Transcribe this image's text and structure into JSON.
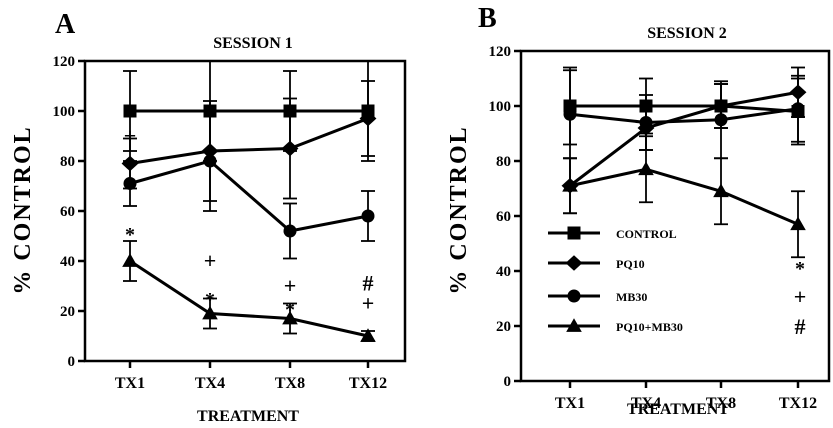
{
  "chart_data": [
    {
      "panel_letter": "A",
      "type": "line",
      "title": "SESSION 1",
      "xlabel": "TREATMENT",
      "ylabel": "% CONTROL",
      "categories": [
        "TX1",
        "TX4",
        "TX8",
        "TX12"
      ],
      "ylim": [
        0,
        120
      ],
      "yticks": [
        "0",
        "20",
        "40",
        "60",
        "80",
        "100",
        "120"
      ],
      "grid": false,
      "series": [
        {
          "key": "control",
          "marker": "square",
          "values": [
            100,
            100,
            100,
            100
          ],
          "err": [
            16,
            20,
            16,
            20
          ]
        },
        {
          "key": "pq10",
          "marker": "diamond",
          "values": [
            79,
            84,
            85,
            97
          ],
          "err": [
            10,
            20,
            20,
            15
          ]
        },
        {
          "key": "mb30",
          "marker": "circle",
          "values": [
            71,
            80,
            52,
            58
          ],
          "err": [
            9,
            20,
            11,
            10
          ]
        },
        {
          "key": "pq10mb30",
          "marker": "triangle",
          "values": [
            40,
            19,
            17,
            10
          ],
          "err": [
            8,
            6,
            6,
            2
          ]
        }
      ],
      "annotations": [
        {
          "text": "*",
          "category": "TX1",
          "y": 52
        },
        {
          "text": "+",
          "category": "TX1",
          "y": 90
        },
        {
          "text": "+",
          "category": "TX4",
          "y": 40
        },
        {
          "text": "*",
          "category": "TX4",
          "y": 26
        },
        {
          "text": "+",
          "category": "TX8",
          "y": 30
        },
        {
          "text": "*",
          "category": "TX8",
          "y": 22
        },
        {
          "text": "#",
          "category": "TX12",
          "y": 31
        },
        {
          "text": "+",
          "category": "TX12",
          "y": 23
        }
      ]
    },
    {
      "panel_letter": "B",
      "type": "line",
      "title": "SESSION 2",
      "xlabel": "TREATMENT",
      "ylabel": "% CONTROL",
      "categories": [
        "TX1",
        "TX4",
        "TX8",
        "TX12"
      ],
      "ylim": [
        0,
        120
      ],
      "yticks": [
        "0",
        "20",
        "40",
        "60",
        "80",
        "100",
        "120"
      ],
      "grid": false,
      "series": [
        {
          "key": "control",
          "marker": "square",
          "values": [
            100,
            100,
            100,
            98
          ],
          "err": [
            14,
            10,
            8,
            12
          ]
        },
        {
          "key": "pq10",
          "marker": "diamond",
          "values": [
            71,
            92,
            100,
            105
          ],
          "err": [
            10,
            8,
            8,
            9
          ]
        },
        {
          "key": "mb30",
          "marker": "circle",
          "values": [
            97,
            94,
            95,
            99
          ],
          "err": [
            16,
            10,
            14,
            12
          ]
        },
        {
          "key": "pq10mb30",
          "marker": "triangle",
          "values": [
            71,
            77,
            69,
            57
          ],
          "err": [
            10,
            12,
            12,
            12
          ]
        }
      ],
      "legend": [
        {
          "key": "control",
          "label": "CONTROL",
          "symbol": ""
        },
        {
          "key": "pq10",
          "label": "PQ10",
          "symbol": "*"
        },
        {
          "key": "mb30",
          "label": "MB30",
          "symbol": "+"
        },
        {
          "key": "pq10mb30",
          "label": "PQ10+MB30",
          "symbol": "#"
        }
      ],
      "legend_position": "bottom-left"
    }
  ]
}
